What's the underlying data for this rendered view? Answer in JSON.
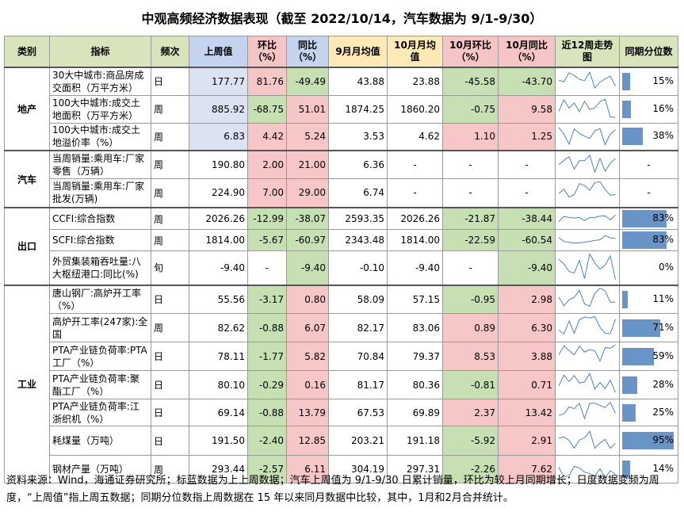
{
  "title": "中观高频经济数据表现（截至 2022/10/14，汽车数据为 9/1-9/30）",
  "table": {
    "headers": [
      "类别",
      "指标",
      "频次",
      "上周值",
      "环比（%）",
      "同比（%）",
      "9月月均值",
      "10月月均值",
      "10月环比（%）",
      "10月同比（%）",
      "近12周走势图",
      "同期分位数"
    ],
    "groups": [
      {
        "category": "地产",
        "rows": [
          {
            "indicator": "30大中城市:商品房成交面积（万平方米）",
            "freq": "日",
            "cells": [
              "177.77",
              "81.76",
              "-49.49",
              "43.88",
              "23.88",
              "-45.58",
              "-43.70"
            ],
            "pct": {
              "value": 15,
              "label": "15%"
            }
          },
          {
            "indicator": "100大中城市:成交土地面积（万平方米）",
            "freq": "周",
            "cells": [
              "885.92",
              "-68.75",
              "51.01",
              "1874.25",
              "1860.20",
              "-0.75",
              "9.58"
            ],
            "pct": {
              "value": 16,
              "label": "16%"
            }
          },
          {
            "indicator": "100大中城市:成交土地溢价率（%）",
            "freq": "周",
            "cells": [
              "6.83",
              "4.42",
              "5.24",
              "3.53",
              "4.62",
              "1.10",
              "1.25"
            ],
            "pct": {
              "value": 38,
              "label": "38%"
            }
          }
        ]
      },
      {
        "category": "汽车",
        "rows": [
          {
            "indicator": "当周销量:乘用车:厂家零售（万辆）",
            "freq": "周",
            "cells": [
              "190.80",
              "2.00",
              "21.00",
              "6.36",
              "-",
              "-",
              "-"
            ],
            "pct": "-"
          },
          {
            "indicator": "当周销量:乘用车:厂家批发(万辆)",
            "freq": "周",
            "cells": [
              "224.90",
              "7.00",
              "29.00",
              "6.74",
              "-",
              "-",
              "-"
            ],
            "pct": "-"
          }
        ]
      },
      {
        "category": "出口",
        "rows": [
          {
            "indicator": "CCFI:综合指数",
            "freq": "周",
            "cells": [
              "2026.26",
              "-12.99",
              "-38.07",
              "2593.35",
              "2026.26",
              "-21.87",
              "-38.44"
            ],
            "pct": {
              "value": 83,
              "label": "83%"
            }
          },
          {
            "indicator": "SCFI:综合指数",
            "freq": "周",
            "cells": [
              "1814.00",
              "-5.67",
              "-60.97",
              "2343.48",
              "1814.00",
              "-22.59",
              "-60.54"
            ],
            "pct": {
              "value": 83,
              "label": "83%"
            }
          },
          {
            "indicator": "外贸集装箱吞吐量:八大枢纽港口:同比(%)",
            "freq": "旬",
            "cells": [
              "-9.40",
              "-",
              "-9.40",
              "-0.10",
              "-9.40",
              "-",
              "-9.40"
            ],
            "pct": {
              "value": 0,
              "label": "0%"
            }
          }
        ]
      },
      {
        "category": "工业",
        "rows": [
          {
            "indicator": "唐山钢厂:高炉开工率（%）",
            "freq": "日",
            "cells": [
              "55.56",
              "-3.17",
              "0.80",
              "58.09",
              "57.15",
              "-0.95",
              "2.98"
            ],
            "pct": {
              "value": 11,
              "label": "11%"
            }
          },
          {
            "indicator": "高炉开工率(247家):全国",
            "freq": "周",
            "cells": [
              "82.62",
              "-0.88",
              "6.07",
              "82.17",
              "83.06",
              "0.89",
              "6.30"
            ],
            "pct": {
              "value": 71,
              "label": "71%"
            }
          },
          {
            "indicator": "PTA产业链负荷率:PTA工厂（%）",
            "freq": "日",
            "cells": [
              "78.11",
              "-1.77",
              "5.82",
              "70.84",
              "79.37",
              "8.53",
              "3.88"
            ],
            "pct": {
              "value": 59,
              "label": "59%"
            }
          },
          {
            "indicator": "PTA产业链负荷率:聚酯工厂（%）",
            "freq": "日",
            "cells": [
              "80.10",
              "-0.29",
              "0.16",
              "81.17",
              "80.36",
              "-0.81",
              "0.71"
            ],
            "pct": {
              "value": 28,
              "label": "28%"
            }
          },
          {
            "indicator": "PTA产业链负荷率:江浙织机（%）",
            "freq": "日",
            "cells": [
              "69.14",
              "-0.88",
              "13.79",
              "67.53",
              "69.89",
              "2.37",
              "13.42"
            ],
            "pct": {
              "value": 25,
              "label": "25%"
            }
          },
          {
            "indicator": "耗煤量（万吨）",
            "freq": "日",
            "cells": [
              "191.50",
              "-2.40",
              "12.85",
              "203.21",
              "191.18",
              "-5.92",
              "2.91"
            ],
            "pct": {
              "value": 95,
              "label": "95%"
            }
          },
          {
            "indicator": "钢材产量（万吨）",
            "freq": "周",
            "cells": [
              "293.44",
              "-2.57",
              "6.11",
              "304.19",
              "297.31",
              "-2.26",
              "7.62"
            ],
            "pct": {
              "value": 14,
              "label": "14%"
            }
          }
        ]
      }
    ]
  },
  "footnote": "资料来源：Wind，海通证券研究所；标蓝数据为上上周数据；汽车上周值为 9/1-9/30 日累计销量，环比为较上月同期增长；日度数据变频为周度，“上周值”指上周五数据；同期分位数指上周数据在 15 年以来同月数据中比较，其中，1月和2月合并统计。"
}
